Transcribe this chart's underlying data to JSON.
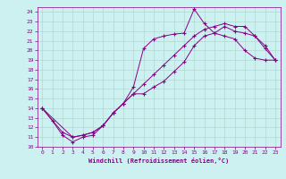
{
  "xlabel": "Windchill (Refroidissement éolien,°C)",
  "background_color": "#cdf0f0",
  "grid_color": "#b0d8d0",
  "line_color": "#880088",
  "xlim": [
    -0.5,
    23.5
  ],
  "ylim": [
    10,
    24.5
  ],
  "xticks": [
    0,
    1,
    2,
    3,
    4,
    5,
    6,
    7,
    8,
    9,
    10,
    11,
    12,
    13,
    14,
    15,
    16,
    17,
    18,
    19,
    20,
    21,
    22,
    23
  ],
  "yticks": [
    10,
    11,
    12,
    13,
    14,
    15,
    16,
    17,
    18,
    19,
    20,
    21,
    22,
    23,
    24
  ],
  "line1_x": [
    0,
    1,
    2,
    3,
    4,
    5,
    6,
    7,
    8,
    9,
    10,
    11,
    12,
    13,
    14,
    15,
    16,
    17,
    18,
    19,
    20,
    21,
    22,
    23
  ],
  "line1_y": [
    14,
    12.7,
    11.2,
    10.5,
    11.0,
    11.2,
    12.2,
    13.5,
    14.5,
    16.2,
    20.2,
    21.2,
    21.5,
    21.7,
    21.8,
    24.3,
    22.8,
    21.8,
    21.5,
    21.2,
    20.0,
    19.2,
    19.0,
    19.0
  ],
  "line2_x": [
    0,
    3,
    4,
    5,
    6,
    7,
    8,
    9,
    10,
    11,
    12,
    13,
    14,
    15,
    16,
    17,
    18,
    19,
    20,
    21,
    22,
    23
  ],
  "line2_y": [
    14,
    11.0,
    11.2,
    11.5,
    12.2,
    13.5,
    14.5,
    15.5,
    16.5,
    17.5,
    18.5,
    19.5,
    20.5,
    21.5,
    22.2,
    22.5,
    22.8,
    22.5,
    22.5,
    21.5,
    20.5,
    19.0
  ],
  "line3_x": [
    0,
    2,
    3,
    4,
    5,
    6,
    7,
    8,
    9,
    10,
    11,
    12,
    13,
    14,
    15,
    16,
    17,
    18,
    19,
    20,
    21,
    22,
    23
  ],
  "line3_y": [
    14,
    11.5,
    11.0,
    11.2,
    11.5,
    12.2,
    13.5,
    14.5,
    15.5,
    15.5,
    16.2,
    16.8,
    17.8,
    18.8,
    20.5,
    21.5,
    21.8,
    22.5,
    22.0,
    21.8,
    21.5,
    20.2,
    19.0
  ]
}
